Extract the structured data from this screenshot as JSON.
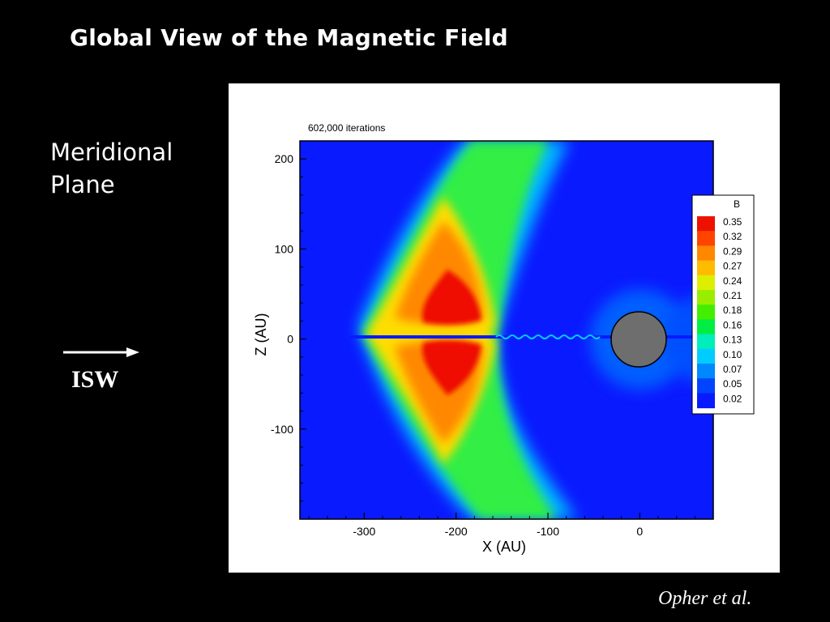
{
  "slide": {
    "title": "Global View of the Magnetic Field",
    "side_label_line1": "Meridional",
    "side_label_line2": "Plane",
    "arrow_label": "ISW",
    "credit": "Opher et al."
  },
  "colors": {
    "background": "#000000",
    "text": "#ffffff",
    "field_low": "#0a1aff",
    "field_high": "#ee1100",
    "sphere": "#6e6e6e"
  },
  "chart_data": {
    "type": "heatmap",
    "annotation": "602,000 iterations",
    "xlabel": "X (AU)",
    "ylabel": "Z (AU)",
    "xlim": [
      -370,
      80
    ],
    "ylim": [
      -200,
      220
    ],
    "x_ticks": [
      -300,
      -200,
      -100,
      0
    ],
    "y_ticks": [
      200,
      100,
      0,
      -100
    ],
    "colorbar": {
      "title": "B",
      "levels": [
        "0.35",
        "0.32",
        "0.29",
        "0.27",
        "0.24",
        "0.21",
        "0.18",
        "0.16",
        "0.13",
        "0.10",
        "0.07",
        "0.05",
        "0.02"
      ],
      "colors": [
        "#ee1100",
        "#ff4400",
        "#ff8800",
        "#ffbb00",
        "#ddee00",
        "#99ee00",
        "#44ee00",
        "#00ee44",
        "#00eebb",
        "#00ccff",
        "#0088ff",
        "#0044ff",
        "#0a1aff"
      ]
    }
  }
}
